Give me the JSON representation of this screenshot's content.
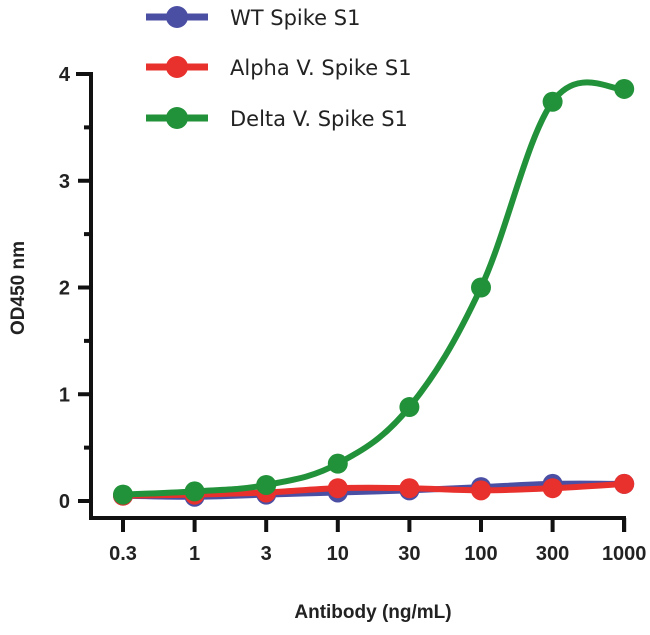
{
  "chart_data": {
    "type": "line",
    "title": "",
    "xlabel": "Antibody (ng/mL)",
    "ylabel": "OD450 nm",
    "x_scale": "log",
    "x": [
      0.3,
      1,
      3,
      10,
      30,
      100,
      300,
      1000
    ],
    "x_tick_labels": [
      "0.3",
      "1",
      "3",
      "10",
      "30",
      "100",
      "300",
      "1000"
    ],
    "y_ticks": [
      0,
      1,
      2,
      3,
      4
    ],
    "y_tick_labels": [
      "0",
      "1",
      "2",
      "3",
      "4"
    ],
    "y_minor_step": 0.5,
    "ylim": [
      0,
      4
    ],
    "grid": false,
    "legend_position": "top",
    "series": [
      {
        "name": "WT Spike S1",
        "color": "#4b4fa3",
        "values": [
          0.05,
          0.04,
          0.06,
          0.08,
          0.1,
          0.13,
          0.16,
          0.16
        ]
      },
      {
        "name": "Alpha V. Spike S1",
        "color": "#e8302c",
        "values": [
          0.05,
          0.06,
          0.08,
          0.12,
          0.12,
          0.1,
          0.12,
          0.16
        ]
      },
      {
        "name": "Delta V. Spike S1",
        "color": "#22923a",
        "values": [
          0.06,
          0.09,
          0.15,
          0.35,
          0.88,
          2.0,
          3.74,
          3.86
        ]
      }
    ]
  }
}
